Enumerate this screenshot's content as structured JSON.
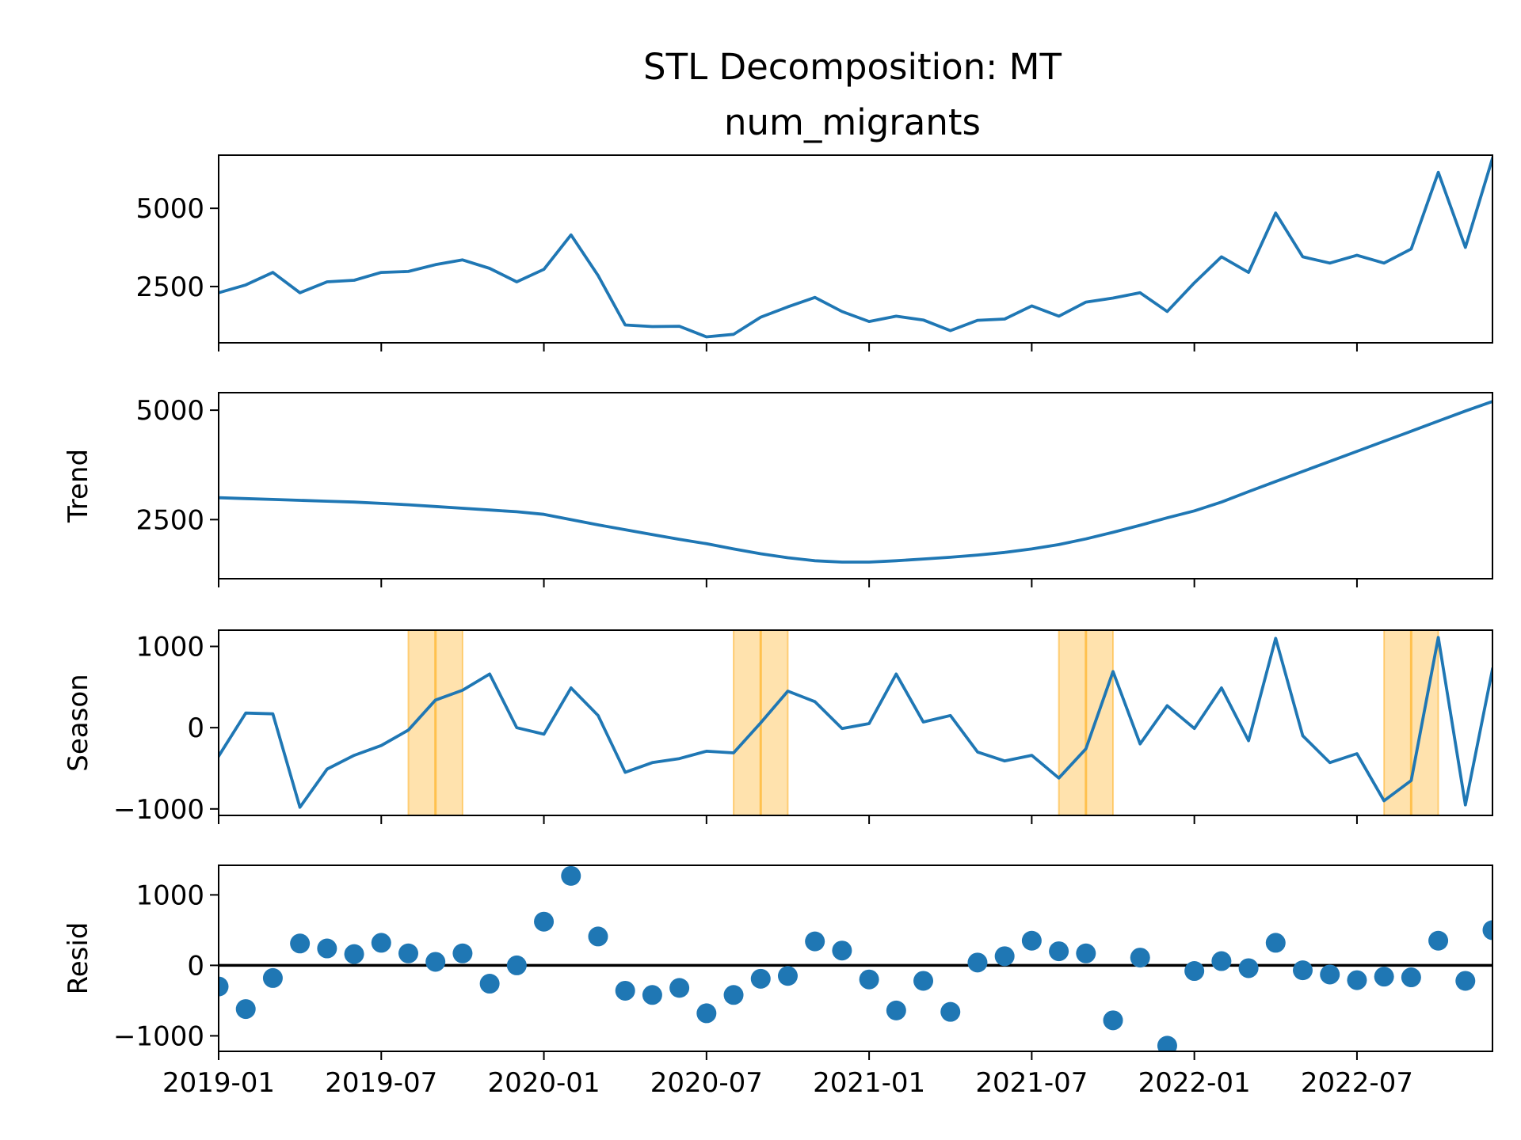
{
  "chart_data": {
    "type": "line",
    "title": "STL Decomposition: MT",
    "subtitle": "num_migrants",
    "x": [
      "2019-01",
      "2019-02",
      "2019-03",
      "2019-04",
      "2019-05",
      "2019-06",
      "2019-07",
      "2019-08",
      "2019-09",
      "2019-10",
      "2019-11",
      "2019-12",
      "2020-01",
      "2020-02",
      "2020-03",
      "2020-04",
      "2020-05",
      "2020-06",
      "2020-07",
      "2020-08",
      "2020-09",
      "2020-10",
      "2020-11",
      "2020-12",
      "2021-01",
      "2021-02",
      "2021-03",
      "2021-04",
      "2021-05",
      "2021-06",
      "2021-07",
      "2021-08",
      "2021-09",
      "2021-10",
      "2021-11",
      "2021-12",
      "2022-01",
      "2022-02",
      "2022-03",
      "2022-04",
      "2022-05",
      "2022-06",
      "2022-07",
      "2022-08",
      "2022-09",
      "2022-10",
      "2022-11",
      "2022-12"
    ],
    "x_ticks": [
      "2019-01",
      "2019-07",
      "2020-01",
      "2020-07",
      "2021-01",
      "2021-07",
      "2022-01",
      "2022-07"
    ],
    "x_range": [
      "2019-01",
      "2022-12"
    ],
    "line_color": "#1f77b4",
    "highlight_color": "#ffa500",
    "panels": [
      {
        "name": "observed",
        "ylabel": "",
        "style": "line",
        "yticks": [
          2500,
          5000
        ],
        "ylim": [
          700,
          6700
        ],
        "values": [
          2300,
          2550,
          2950,
          2300,
          2650,
          2700,
          2950,
          2980,
          3200,
          3350,
          3080,
          2650,
          3050,
          4150,
          2850,
          1270,
          1220,
          1230,
          890,
          970,
          1520,
          1850,
          2150,
          1700,
          1380,
          1550,
          1430,
          1090,
          1420,
          1460,
          1880,
          1550,
          2000,
          2130,
          2300,
          1700,
          2620,
          3450,
          2950,
          4850,
          3450,
          3250,
          3500,
          3250,
          3700,
          6150,
          3750,
          6600
        ]
      },
      {
        "name": "trend",
        "ylabel": "Trend",
        "style": "line",
        "yticks": [
          2500,
          5000
        ],
        "ylim": [
          1150,
          5400
        ],
        "values": [
          3000,
          2980,
          2960,
          2940,
          2920,
          2900,
          2870,
          2840,
          2800,
          2760,
          2720,
          2680,
          2620,
          2500,
          2380,
          2270,
          2160,
          2050,
          1950,
          1830,
          1720,
          1630,
          1560,
          1530,
          1530,
          1560,
          1600,
          1640,
          1690,
          1750,
          1830,
          1930,
          2060,
          2210,
          2370,
          2540,
          2700,
          2900,
          3140,
          3370,
          3600,
          3830,
          4060,
          4290,
          4520,
          4750,
          4980,
          5200
        ]
      },
      {
        "name": "season",
        "ylabel": "Season",
        "style": "line",
        "yticks": [
          -1000,
          0,
          1000
        ],
        "ylim": [
          -1080,
          1200
        ],
        "values": [
          -350,
          180,
          170,
          -980,
          -510,
          -340,
          -220,
          -30,
          340,
          460,
          660,
          0,
          -80,
          490,
          150,
          -550,
          -430,
          -380,
          -290,
          -310,
          60,
          450,
          320,
          -10,
          50,
          660,
          70,
          150,
          -300,
          -410,
          -340,
          -620,
          -260,
          690,
          -200,
          270,
          -10,
          490,
          -160,
          1100,
          -100,
          -430,
          -320,
          -900,
          -650,
          1110,
          -950,
          720
        ],
        "highlight_bands": [
          {
            "from": "2019-08",
            "to": "2019-10"
          },
          {
            "from": "2020-08",
            "to": "2020-10"
          },
          {
            "from": "2021-08",
            "to": "2021-10"
          },
          {
            "from": "2022-08",
            "to": "2022-10"
          }
        ]
      },
      {
        "name": "resid",
        "ylabel": "Resid",
        "style": "scatter",
        "yticks": [
          -1000,
          0,
          1000
        ],
        "ylim": [
          -1220,
          1420
        ],
        "baseline": 0,
        "values": [
          -300,
          -620,
          -180,
          310,
          240,
          160,
          320,
          170,
          50,
          170,
          -260,
          0,
          620,
          1270,
          410,
          -360,
          -420,
          -320,
          -680,
          -420,
          -190,
          -150,
          340,
          210,
          -200,
          -640,
          -220,
          -660,
          40,
          130,
          350,
          200,
          170,
          -780,
          110,
          -1140,
          -80,
          60,
          -40,
          320,
          -70,
          -130,
          -210,
          -160,
          -170,
          350,
          -220,
          500
        ]
      }
    ]
  }
}
